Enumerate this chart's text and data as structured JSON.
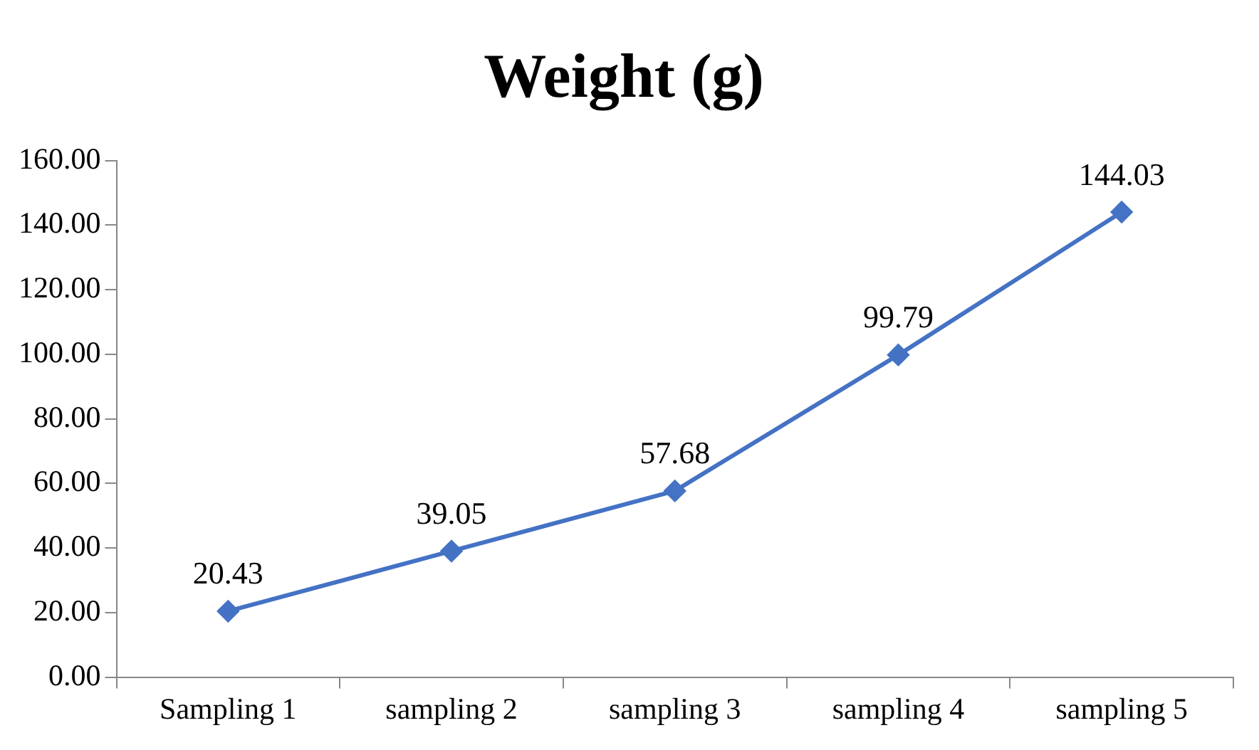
{
  "chart_data": {
    "type": "line",
    "title": "Weight (g)",
    "categories": [
      "Sampling 1",
      "sampling 2",
      "sampling 3",
      "sampling 4",
      "sampling 5"
    ],
    "series": [
      {
        "color": "#4472c4",
        "values": [
          20.43,
          39.05,
          57.68,
          99.79,
          144.03
        ]
      }
    ],
    "ylim": [
      0,
      160
    ],
    "yticks": [
      {
        "value": 0,
        "label": "0.00"
      },
      {
        "value": 20,
        "label": "20.00"
      },
      {
        "value": 40,
        "label": "40.00"
      },
      {
        "value": 60,
        "label": "60.00"
      },
      {
        "value": 80,
        "label": "80.00"
      },
      {
        "value": 100,
        "label": "100.00"
      },
      {
        "value": 120,
        "label": "120.00"
      },
      {
        "value": 140,
        "label": "140.00"
      },
      {
        "value": 160,
        "label": "160.00"
      }
    ],
    "marker": "diamond",
    "line_style": "solid",
    "data_labels": true,
    "grid": false,
    "legend": false
  }
}
